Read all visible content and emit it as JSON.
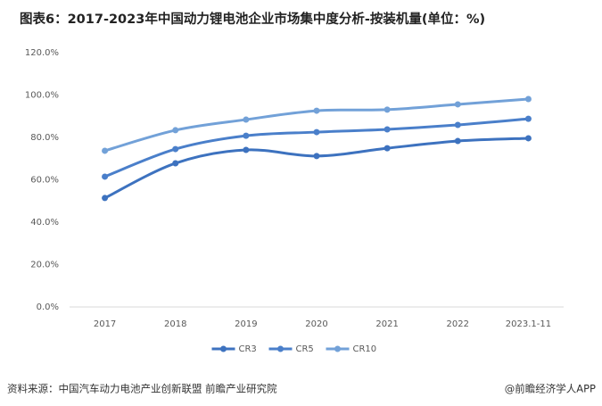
{
  "chart_data": {
    "type": "line",
    "title": "图表6：2017-2023年中国动力锂电池企业市场集中度分析-按装机量(单位：%)",
    "categories": [
      "2017",
      "2018",
      "2019",
      "2020",
      "2021",
      "2022",
      "2023.1-11"
    ],
    "series": [
      {
        "name": "CR3",
        "color": "#3d72bf",
        "values": [
          51.4,
          67.8,
          74.1,
          71.2,
          74.9,
          78.3,
          79.6
        ]
      },
      {
        "name": "CR5",
        "color": "#4a7fca",
        "values": [
          61.5,
          74.5,
          80.8,
          82.5,
          83.8,
          85.9,
          88.8
        ]
      },
      {
        "name": "CR10",
        "color": "#72a1d8",
        "values": [
          73.7,
          83.4,
          88.4,
          92.6,
          93.1,
          95.6,
          98.1
        ]
      }
    ],
    "ylim": [
      0,
      120
    ],
    "yticks": [
      {
        "value": 0,
        "label": "0.0%"
      },
      {
        "value": 20,
        "label": "20.0%"
      },
      {
        "value": 40,
        "label": "40.0%"
      },
      {
        "value": 60,
        "label": "60.0%"
      },
      {
        "value": 80,
        "label": "80.0%"
      },
      {
        "value": 100,
        "label": "100.0%"
      },
      {
        "value": 120,
        "label": "120.0%"
      }
    ],
    "grid": false,
    "legend": "bottom",
    "source": "资料来源：中国汽车动力电池产业创新联盟 前瞻产业研究院",
    "brand": "@前瞻经济学人APP"
  }
}
